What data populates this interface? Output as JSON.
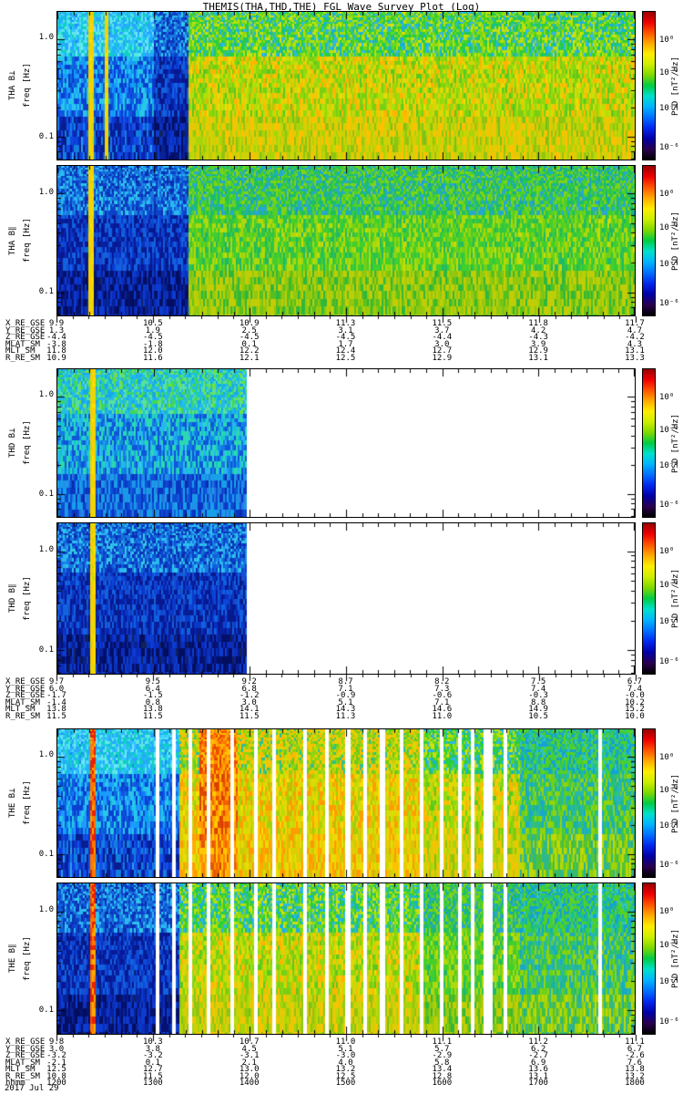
{
  "title": "THEMIS(THA,THD,THE) FGL Wave Survey Plot (Log)",
  "date_label": "2017 Jul 29",
  "freq_axis": {
    "label": "freq [Hz]",
    "major_ticks": [
      "1.0",
      "0.1"
    ]
  },
  "colorbar": {
    "label": "PSD [nT²/Hz]",
    "tick_labels": [
      "10⁰",
      "10⁻²",
      "10⁻⁴",
      "10⁻⁶"
    ],
    "tick_pos": [
      0.2,
      0.42,
      0.66,
      0.92
    ],
    "stops": [
      "#000000",
      "#2a0050",
      "#0000a8",
      "#0028ee",
      "#0070ff",
      "#00b4ff",
      "#00e0cc",
      "#00cc44",
      "#7fd800",
      "#ccee00",
      "#ffee00",
      "#ffaa00",
      "#ff5500",
      "#ee0000",
      "#990000"
    ]
  },
  "groups": [
    {
      "name": "THA",
      "panels": [
        {
          "id": "tha-bperp",
          "label": "THA B⊥"
        },
        {
          "id": "tha-bpar",
          "label": "THA B∥"
        }
      ],
      "ephemeris": [
        {
          "label": "X_RE_GSE",
          "values": [
            "9.9",
            "10.5",
            "10.9",
            "11.3",
            "11.5",
            "11.8",
            "11.7"
          ]
        },
        {
          "label": "Y_RE_GSE",
          "values": [
            "1.3",
            "1.9",
            "2.5",
            "3.1",
            "3.7",
            "4.2",
            "4.7"
          ]
        },
        {
          "label": "Z_RE_GSE",
          "values": [
            "-4.4",
            "-4.5",
            "-4.5",
            "-4.5",
            "-4.4",
            "-4.3",
            "-4.2"
          ]
        },
        {
          "label": "MLAT_SM",
          "values": [
            "-3.8",
            "-1.8",
            "0.1",
            "1.7",
            "3.0",
            "3.9",
            "4.3"
          ]
        },
        {
          "label": "MLT_SM",
          "values": [
            "11.8",
            "12.0",
            "12.2",
            "12.4",
            "12.7",
            "12.9",
            "13.1"
          ]
        },
        {
          "label": "R_RE_SM",
          "values": [
            "10.9",
            "11.6",
            "12.1",
            "12.5",
            "12.9",
            "13.1",
            "13.3"
          ]
        }
      ]
    },
    {
      "name": "THD",
      "panels": [
        {
          "id": "thd-bperp",
          "label": "THD B⊥"
        },
        {
          "id": "thd-bpar",
          "label": "THD B∥"
        }
      ],
      "ephemeris": [
        {
          "label": "X_RE_GSE",
          "values": [
            "9.7",
            "9.5",
            "9.2",
            "8.7",
            "8.2",
            "7.5",
            "6.7"
          ]
        },
        {
          "label": "Y_RE_GSE",
          "values": [
            "6.0",
            "6.4",
            "6.8",
            "7.1",
            "7.3",
            "7.4",
            "7.4"
          ]
        },
        {
          "label": "Z_RE_GSE",
          "values": [
            "-1.7",
            "-1.5",
            "-1.2",
            "-0.9",
            "-0.6",
            "-0.3",
            "-0.0"
          ]
        },
        {
          "label": "MLAT_SM",
          "values": [
            "-1.4",
            "0.8",
            "3.0",
            "5.1",
            "7.1",
            "8.8",
            "10.2"
          ]
        },
        {
          "label": "MLT_SM",
          "values": [
            "13.8",
            "13.8",
            "14.1",
            "14.3",
            "14.6",
            "14.9",
            "15.2"
          ]
        },
        {
          "label": "R_RE_SM",
          "values": [
            "11.5",
            "11.5",
            "11.5",
            "11.3",
            "11.0",
            "10.5",
            "10.0"
          ]
        }
      ]
    },
    {
      "name": "THE",
      "panels": [
        {
          "id": "the-bperp",
          "label": "THE B⊥"
        },
        {
          "id": "the-bpar",
          "label": "THE B∥"
        }
      ],
      "ephemeris": [
        {
          "label": "X_RE_GSE",
          "values": [
            "9.8",
            "10.3",
            "10.7",
            "11.0",
            "11.1",
            "11.2",
            "11.1"
          ]
        },
        {
          "label": "Y_RE_GSE",
          "values": [
            "3.0",
            "3.8",
            "4.5",
            "5.1",
            "5.7",
            "6.2",
            "6.7"
          ]
        },
        {
          "label": "Z_RE_GSE",
          "values": [
            "-3.2",
            "-3.2",
            "-3.1",
            "-3.0",
            "-2.9",
            "-2.7",
            "-2.6"
          ]
        },
        {
          "label": "MLAT_SM",
          "values": [
            "-2.1",
            "0.1",
            "2.1",
            "4.0",
            "5.8",
            "6.9",
            "7.6"
          ]
        },
        {
          "label": "MLT_SM",
          "values": [
            "12.5",
            "12.7",
            "13.0",
            "13.2",
            "13.4",
            "13.6",
            "13.8"
          ]
        },
        {
          "label": "R_RE_SM",
          "values": [
            "10.8",
            "11.5",
            "12.0",
            "12.5",
            "12.8",
            "13.1",
            "13.2"
          ]
        },
        {
          "label": "hhmm",
          "values": [
            "1200",
            "1300",
            "1400",
            "1500",
            "1600",
            "1700",
            "1800"
          ]
        }
      ]
    }
  ],
  "chart_data": {
    "type": "heatmap",
    "subtype": "wave-power-spectrogram",
    "x_axis": {
      "label": "hhmm (UT), 2017 Jul 29",
      "ticks": [
        "1200",
        "1300",
        "1400",
        "1500",
        "1600",
        "1700",
        "1800"
      ]
    },
    "y_axis": {
      "label": "freq [Hz]",
      "scale": "log",
      "range_hz": [
        0.06,
        1.9
      ],
      "ticks": [
        "1.0",
        "0.1"
      ]
    },
    "z_axis": {
      "label": "PSD [nT²/Hz]",
      "scale": "log",
      "tick_values": [
        1,
        0.01,
        0.0001,
        1e-06
      ]
    },
    "palettes": {
      "cold": {
        "top": [
          "#3fd9ff",
          "#19b7f2",
          "#57e8e0",
          "#27a7ff",
          "#0fd0c0",
          "#35c4ff",
          "#6fe3ff",
          "#1390e8"
        ],
        "mid": [
          "#1577ff",
          "#0f9ff2",
          "#1055e0",
          "#27c7e8",
          "#0a3fd0",
          "#1e9bff",
          "#0c6cd8",
          "#13b7d0"
        ],
        "bot": [
          "#0c3ad8",
          "#0a23b0",
          "#1550e8",
          "#071d90",
          "#1280e0",
          "#0a35c8",
          "#0d47e0",
          "#2a9ff0"
        ]
      },
      "colddark": {
        "top": [
          "#1a8fe8",
          "#0f5fd8",
          "#2ab7f0",
          "#0c41c8",
          "#1a77e0",
          "#0a2db0",
          "#30c8e8",
          "#1055d8"
        ],
        "mid": [
          "#0a2fc0",
          "#0c45d8",
          "#071fa0",
          "#1262e0",
          "#081890",
          "#0a38c8",
          "#154fd0",
          "#062080"
        ],
        "bot": [
          "#071a98",
          "#0a2cc0",
          "#051270",
          "#0d3cd0",
          "#040e60",
          "#082298",
          "#0c30b8",
          "#10235c"
        ]
      },
      "cold2": {
        "top": [
          "#2fcf8f",
          "#19c4d8",
          "#3fd957",
          "#27b7f0",
          "#57e0a0",
          "#14a8e8",
          "#6fe03f",
          "#1fcfc0"
        ],
        "mid": [
          "#1f9fe8",
          "#17c4cf",
          "#1577e8",
          "#2ad9b0",
          "#1055d8",
          "#27b7f0",
          "#0f8fe0",
          "#35cfe0"
        ],
        "bot": [
          "#1260e0",
          "#0f47d0",
          "#1f8fe8",
          "#0a35c0",
          "#17a0e8",
          "#0c50d8",
          "#2377e0",
          "#0a28a8"
        ]
      },
      "warm": {
        "top": [
          "#55d018",
          "#1fc46a",
          "#8fd812",
          "#2fb8e0",
          "#b8e00e",
          "#27cf3f",
          "#66d81f",
          "#19b0d8",
          "#d8e00a",
          "#3fcf28"
        ],
        "mid": [
          "#c8dc08",
          "#a0d80e",
          "#e0d805",
          "#78cf14",
          "#f0c805",
          "#8fd80e",
          "#ffb400",
          "#b0e008",
          "#58c81f",
          "#e8e005"
        ],
        "bot": [
          "#b0cc08",
          "#d0d005",
          "#8fc411",
          "#e8c805",
          "#a8d40a",
          "#ffc000",
          "#c0d805",
          "#78c018"
        ]
      },
      "warm2": {
        "top": [
          "#2fc747",
          "#19b77f",
          "#55d024",
          "#27a7d0",
          "#7fd414",
          "#1fbf5f",
          "#3fcf33",
          "#14a0c0"
        ],
        "mid": [
          "#55cc1f",
          "#8fd80e",
          "#2fc447",
          "#b0d80a",
          "#3fcf2e",
          "#70d017",
          "#1fb76a",
          "#c8dc08"
        ],
        "bot": [
          "#78c414",
          "#a0cc0a",
          "#55bf1f",
          "#c4cc06",
          "#8fc80e",
          "#2fb73d",
          "#b8d008",
          "#60c417"
        ]
      },
      "warmhot": {
        "top": [
          "#a8d80e",
          "#d0dc06",
          "#66cc1a",
          "#f0c805",
          "#8fd411",
          "#ffb800",
          "#2fbf8f",
          "#c8e008"
        ],
        "mid": [
          "#e8d805",
          "#ffcc00",
          "#c0d806",
          "#ff9c00",
          "#d8dc05",
          "#a0d00b",
          "#f0b800",
          "#ffdd00"
        ],
        "bot": [
          "#f0cc02",
          "#ffc000",
          "#d8d005",
          "#ff9900",
          "#e8dc04",
          "#c8cc06",
          "#ffaa00",
          "#f0d800"
        ]
      },
      "hot": {
        "top": [
          "#ff9c00",
          "#ff7700",
          "#ffc400",
          "#f05500",
          "#ffb000",
          "#e84400",
          "#ff8800",
          "#d83300"
        ],
        "mid": [
          "#ff8800",
          "#f06000",
          "#ffaa00",
          "#e04800",
          "#ff9900",
          "#ffcc00",
          "#d83c00",
          "#f07700"
        ],
        "bot": [
          "#ffaa00",
          "#ff7f00",
          "#e85500",
          "#ffc800",
          "#f06600",
          "#ff9400",
          "#d84400",
          "#ffbb00"
        ]
      },
      "coolend": {
        "top": [
          "#27c46a",
          "#19b0a8",
          "#3fcf3d",
          "#14a0d8",
          "#55d024",
          "#1fbf8f",
          "#2fc4c0",
          "#66d41a"
        ],
        "mid": [
          "#3fc947",
          "#1fb78f",
          "#6fd01a",
          "#27b7b0",
          "#8fd40e",
          "#2fc45a",
          "#19a8c8",
          "#55cc28"
        ],
        "bot": [
          "#78cc12",
          "#3fbf47",
          "#a0d40a",
          "#2fb78f",
          "#c0d806",
          "#55c42e",
          "#8fcc0e",
          "#1fafa0"
        ]
      },
      "stripeYellow": [
        "#ffe000",
        "#e8d805",
        "#ffcc00",
        "#c8d808"
      ],
      "stripeRed": [
        "#ff4400",
        "#ff7700",
        "#e82200",
        "#ffaa00"
      ]
    },
    "panels": [
      {
        "id": "tha-bperp",
        "seed": 11,
        "segments": [
          [
            0,
            0.165,
            "cold"
          ],
          [
            0.165,
            0.225,
            "colddark"
          ],
          [
            0.225,
            1,
            "warm"
          ]
        ],
        "stripes": [
          [
            0.057,
            0.008,
            "stripeYellow"
          ],
          [
            0.084,
            0.005,
            "stripeYellow"
          ]
        ],
        "gaps": [],
        "summary": "Low PSD (blue/cyan) 1200-1320 UT, enhanced broadband PSD (green/yellow) 1320-1800 UT"
      },
      {
        "id": "tha-bpar",
        "seed": 23,
        "segments": [
          [
            0,
            0.225,
            "colddark"
          ],
          [
            0.225,
            1,
            "warm2"
          ]
        ],
        "stripes": [
          [
            0.057,
            0.008,
            "stripeYellow"
          ]
        ],
        "gaps": [],
        "summary": "Very low PSD (dark blue) 1200-1320 UT, moderate PSD (green) 1320-1800 UT"
      },
      {
        "id": "thd-bperp",
        "seed": 37,
        "segments": [
          [
            0,
            0.325,
            "cold2"
          ]
        ],
        "stripes": [
          [
            0.06,
            0.008,
            "stripeYellow"
          ]
        ],
        "gaps": [
          [
            0.325,
            1.0
          ]
        ],
        "summary": "Low PSD (cyan/blue) 1200-1400 UT; no data after ~1400 UT"
      },
      {
        "id": "thd-bpar",
        "seed": 41,
        "segments": [
          [
            0,
            0.325,
            "colddark"
          ]
        ],
        "stripes": [
          [
            0.06,
            0.008,
            "stripeYellow"
          ]
        ],
        "gaps": [
          [
            0.325,
            1.0
          ]
        ],
        "summary": "Very low PSD (dark blue) 1200-1400 UT; no data after ~1400 UT"
      },
      {
        "id": "the-bperp",
        "seed": 53,
        "segments": [
          [
            0,
            0.21,
            "cold"
          ],
          [
            0.21,
            0.245,
            "warmhot"
          ],
          [
            0.245,
            0.31,
            "hot"
          ],
          [
            0.31,
            0.63,
            "warmhot"
          ],
          [
            0.63,
            0.8,
            "warm"
          ],
          [
            0.8,
            1,
            "coolend"
          ]
        ],
        "stripes": [
          [
            0.06,
            0.008,
            "stripeRed"
          ]
        ],
        "gaps": [
          [
            0.168,
            0.175
          ],
          [
            0.198,
            0.204
          ],
          [
            0.225,
            0.231
          ],
          [
            0.258,
            0.264
          ],
          [
            0.297,
            0.305
          ],
          [
            0.338,
            0.345
          ],
          [
            0.372,
            0.378
          ],
          [
            0.425,
            0.432
          ],
          [
            0.462,
            0.468
          ],
          [
            0.497,
            0.505
          ],
          [
            0.528,
            0.534
          ],
          [
            0.558,
            0.565
          ],
          [
            0.592,
            0.598
          ],
          [
            0.625,
            0.632
          ],
          [
            0.662,
            0.668
          ],
          [
            0.693,
            0.7
          ],
          [
            0.715,
            0.722
          ],
          [
            0.738,
            0.752
          ],
          [
            0.772,
            0.778
          ],
          [
            0.935,
            0.941
          ]
        ],
        "summary": "Low PSD until ~1315 UT, strong enhancement (orange/red) ~1330-1400 UT, high PSD (yellow) with many data gaps 1400-1650 UT, moderate (green) after"
      },
      {
        "id": "the-bpar",
        "seed": 67,
        "segments": [
          [
            0,
            0.21,
            "colddark"
          ],
          [
            0.21,
            0.63,
            "warm"
          ],
          [
            0.63,
            0.8,
            "warm2"
          ],
          [
            0.8,
            1,
            "coolend"
          ]
        ],
        "stripes": [
          [
            0.06,
            0.008,
            "stripeRed"
          ]
        ],
        "gaps": [
          [
            0.168,
            0.175
          ],
          [
            0.198,
            0.204
          ],
          [
            0.225,
            0.231
          ],
          [
            0.258,
            0.264
          ],
          [
            0.297,
            0.305
          ],
          [
            0.338,
            0.345
          ],
          [
            0.372,
            0.378
          ],
          [
            0.425,
            0.432
          ],
          [
            0.462,
            0.468
          ],
          [
            0.497,
            0.505
          ],
          [
            0.528,
            0.534
          ],
          [
            0.558,
            0.565
          ],
          [
            0.592,
            0.598
          ],
          [
            0.625,
            0.632
          ],
          [
            0.662,
            0.668
          ],
          [
            0.693,
            0.7
          ],
          [
            0.715,
            0.722
          ],
          [
            0.738,
            0.752
          ],
          [
            0.772,
            0.778
          ],
          [
            0.935,
            0.941
          ]
        ],
        "summary": "Very low PSD until ~1315 UT, moderate-high PSD (yellow/green) with data gaps 1315-1800 UT"
      }
    ]
  }
}
